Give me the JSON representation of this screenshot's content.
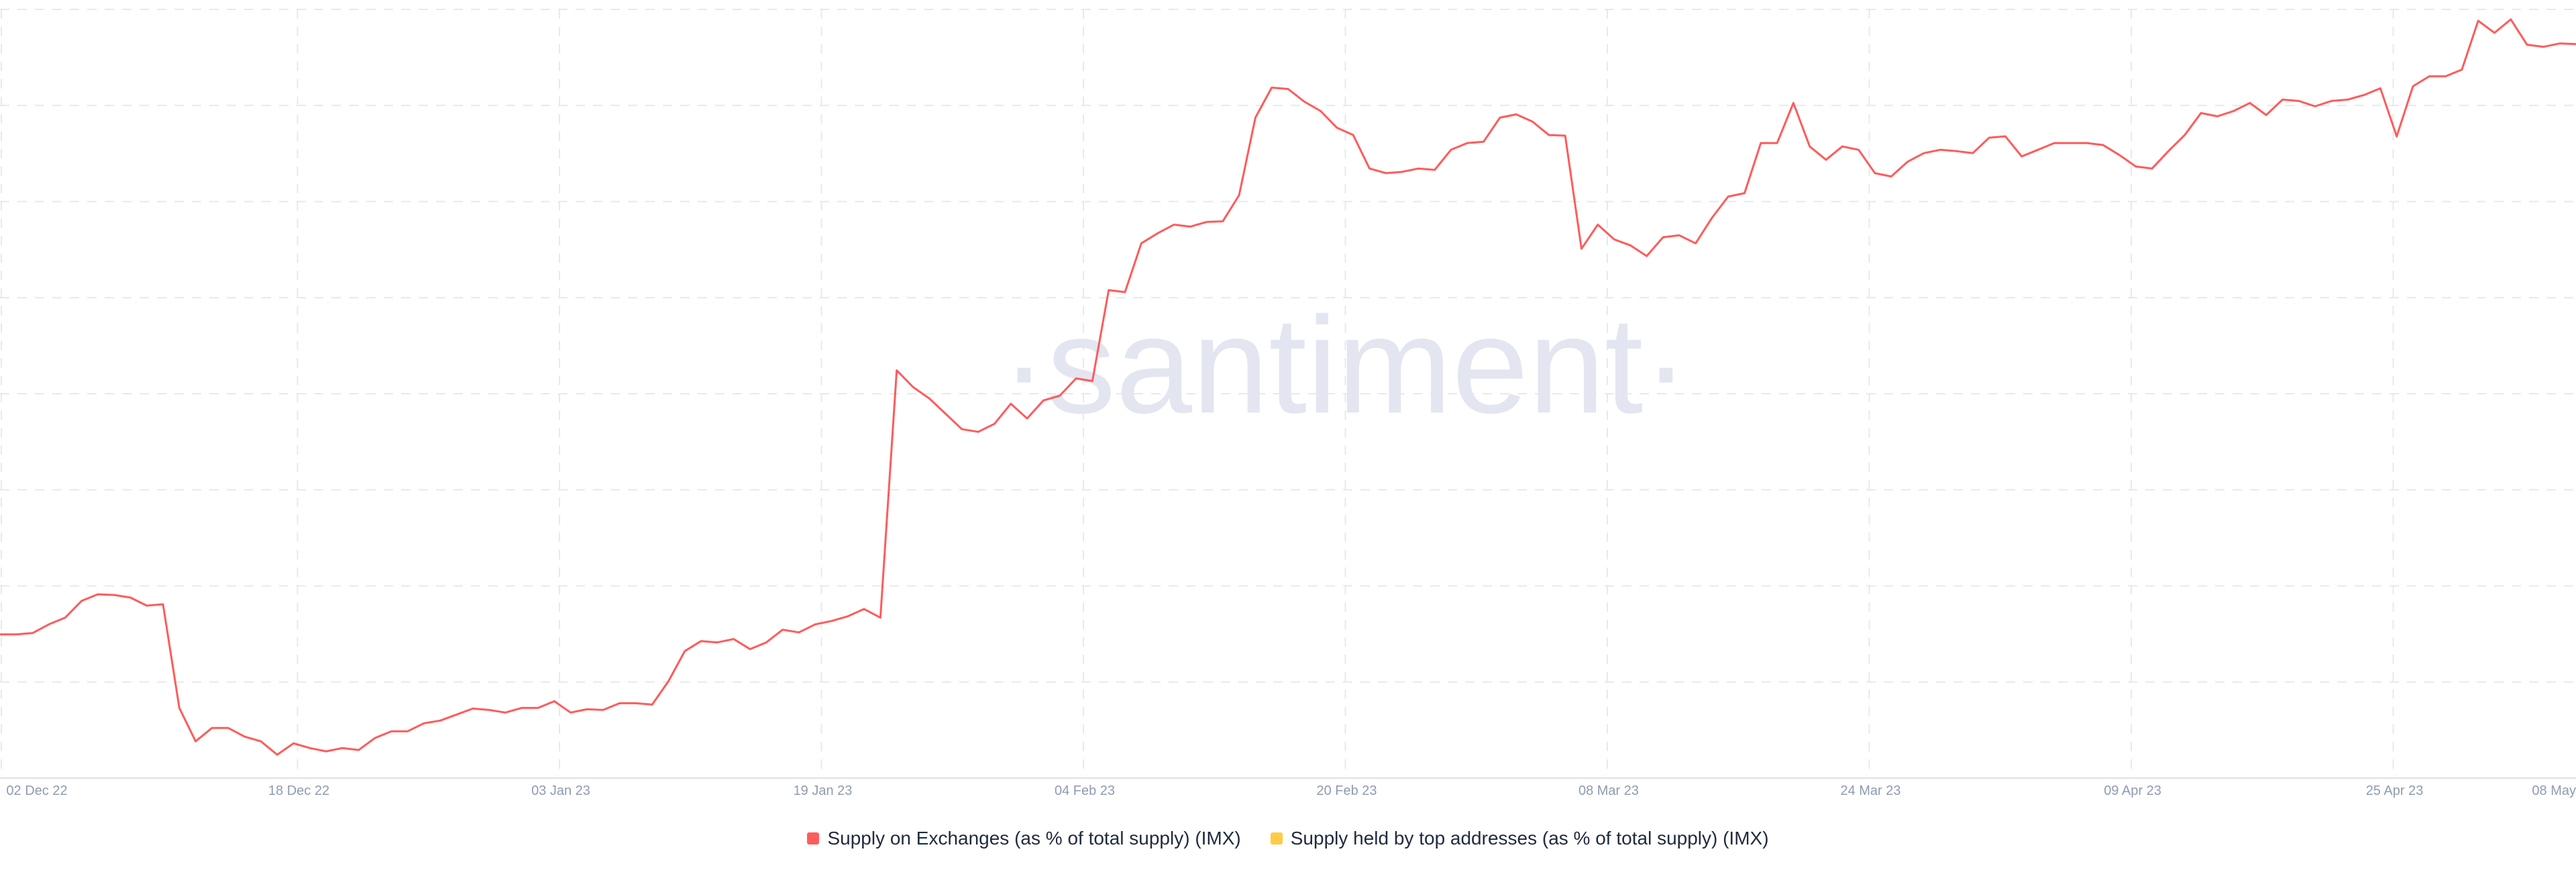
{
  "watermark": {
    "text": "·santiment·"
  },
  "colors": {
    "series_exchanges": "#ff5b5b",
    "series_top_addresses": "#ffcb47",
    "grid": "#e6e9ee",
    "axis_text": "#8d9bb2",
    "watermark": "#e3e6f0",
    "legend_text": "#1f2a3d"
  },
  "chart_data": {
    "type": "line",
    "grid": true,
    "legend_position": "bottom-center",
    "x_ticks": [
      "02 Dec 22",
      "18 Dec 22",
      "03 Jan 23",
      "19 Jan 23",
      "04 Feb 23",
      "20 Feb 23",
      "08 Mar 23",
      "24 Mar 23",
      "09 Apr 23",
      "25 Apr 23",
      "08 May"
    ],
    "series": [
      {
        "name": "Supply on Exchanges (as % of total supply) (IMX)",
        "color": "#ff5b5b",
        "values": [
          10.15,
          10.15,
          10.17,
          10.3,
          10.4,
          10.65,
          10.75,
          10.74,
          10.7,
          10.58,
          10.6,
          9.05,
          8.55,
          8.75,
          8.75,
          8.62,
          8.55,
          8.35,
          8.52,
          8.45,
          8.4,
          8.45,
          8.42,
          8.6,
          8.7,
          8.7,
          8.82,
          8.86,
          8.95,
          9.04,
          9.02,
          8.98,
          9.05,
          9.05,
          9.15,
          8.98,
          9.03,
          9.02,
          9.12,
          9.12,
          9.1,
          9.45,
          9.9,
          10.05,
          10.03,
          10.08,
          9.93,
          10.03,
          10.22,
          10.18,
          10.3,
          10.35,
          10.42,
          10.53,
          10.4,
          14.1,
          13.85,
          13.68,
          13.45,
          13.22,
          13.18,
          13.3,
          13.6,
          13.38,
          13.65,
          13.72,
          13.98,
          13.94,
          15.3,
          15.27,
          16.0,
          16.15,
          16.28,
          16.25,
          16.32,
          16.33,
          16.72,
          17.88,
          18.33,
          18.31,
          18.12,
          17.98,
          17.73,
          17.62,
          17.12,
          17.05,
          17.07,
          17.12,
          17.1,
          17.4,
          17.5,
          17.52,
          17.88,
          17.93,
          17.82,
          17.62,
          17.61,
          15.92,
          16.28,
          16.06,
          15.97,
          15.81,
          16.09,
          16.12,
          16.0,
          16.38,
          16.7,
          16.75,
          17.5,
          17.5,
          18.1,
          17.45,
          17.25,
          17.45,
          17.4,
          17.05,
          17.0,
          17.22,
          17.35,
          17.4,
          17.38,
          17.35,
          17.58,
          17.6,
          17.3,
          17.4,
          17.5,
          17.5,
          17.5,
          17.47,
          17.32,
          17.15,
          17.12,
          17.38,
          17.62,
          17.95,
          17.9,
          17.98,
          18.1,
          17.92,
          18.15,
          18.13,
          18.05,
          18.13,
          18.15,
          18.22,
          18.32,
          17.6,
          18.35,
          18.5,
          18.5,
          18.6,
          19.33,
          19.15,
          19.35,
          18.97,
          18.94,
          18.99,
          18.98
        ]
      },
      {
        "name": "Supply held by top addresses (as % of total supply) (IMX)",
        "color": "#ffcb47",
        "values": []
      }
    ],
    "y_domain": [
      8.0,
      19.5
    ]
  }
}
